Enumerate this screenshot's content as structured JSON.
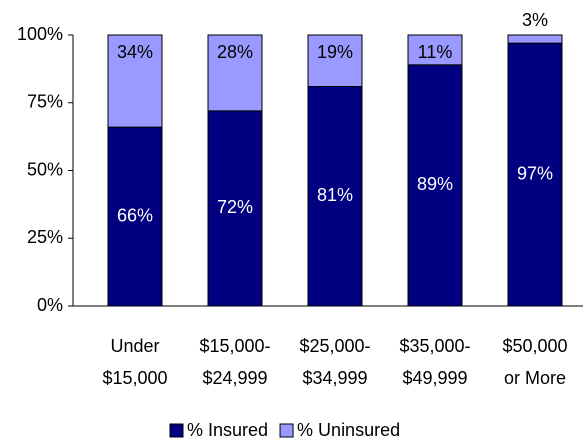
{
  "chart_data": {
    "type": "stacked_bar",
    "categories": [
      "Under\n$15,000",
      "$15,000-\n$24,999",
      "$25,000-\n$34,999",
      "$35,000-\n$49,999",
      "$50,000\nor More"
    ],
    "series": [
      {
        "name": "% Insured",
        "color": "#000080",
        "values": [
          66,
          72,
          81,
          89,
          97
        ],
        "value_labels": [
          "66%",
          "72%",
          "81%",
          "89%",
          "97%"
        ]
      },
      {
        "name": "% Uninsured",
        "color": "#9999ff",
        "values": [
          34,
          28,
          19,
          11,
          3
        ],
        "value_labels": [
          "34%",
          "28%",
          "19%",
          "11%",
          "3%"
        ]
      }
    ],
    "ylim": [
      0,
      100
    ],
    "yticks": [
      {
        "value": 0,
        "label": "0%"
      },
      {
        "value": 25,
        "label": "25%"
      },
      {
        "value": 50,
        "label": "50%"
      },
      {
        "value": 75,
        "label": "75%"
      },
      {
        "value": 100,
        "label": "100%"
      }
    ],
    "legend": "bottom"
  }
}
